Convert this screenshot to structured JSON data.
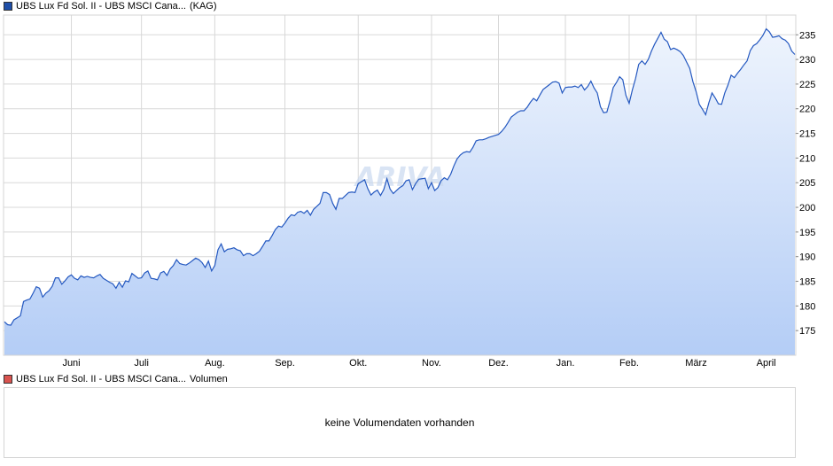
{
  "legend_top": {
    "series_name": "UBS Lux Fd Sol. II - UBS MSCI Cana...",
    "suffix": "(KAG)",
    "color": "#1f4fa8"
  },
  "legend_bottom": {
    "series_name": "UBS Lux Fd Sol. II - UBS MSCI Cana...",
    "suffix": "Volumen",
    "color": "#d9534f"
  },
  "volume": {
    "message": "keine Volumendaten vorhanden"
  },
  "colors": {
    "line": "#2458c0",
    "area_top": "#eef4fd",
    "area_bottom": "#b4cdf6",
    "grid": "#d8d8d8",
    "watermark": "#c9d9f0"
  },
  "chart_data": {
    "type": "area",
    "title": "",
    "xlabel": "",
    "ylabel": "",
    "ylim": [
      170,
      239
    ],
    "yticks": [
      175,
      180,
      185,
      190,
      195,
      200,
      205,
      210,
      215,
      220,
      225,
      230,
      235
    ],
    "x_tick_labels": [
      "Juni",
      "Juli",
      "Aug.",
      "Sep.",
      "Okt.",
      "Nov.",
      "Dez.",
      "Jan.",
      "Feb.",
      "März",
      "April"
    ],
    "x_tick_index": [
      21,
      43,
      66,
      88,
      111,
      134,
      155,
      176,
      196,
      217,
      239
    ],
    "grid": true,
    "legend_position": "top-left",
    "series": [
      {
        "name": "UBS Lux Fd Sol. II - UBS MSCI Cana...",
        "values": [
          176.8,
          176.2,
          176.1,
          177.2,
          177.6,
          178.0,
          180.9,
          181.2,
          181.4,
          182.6,
          183.9,
          183.6,
          181.8,
          182.6,
          183.1,
          184.0,
          185.7,
          185.7,
          184.4,
          185.1,
          185.9,
          186.3,
          185.6,
          185.3,
          186.1,
          185.8,
          186.0,
          185.8,
          185.7,
          186.1,
          186.4,
          185.6,
          185.2,
          184.8,
          184.5,
          183.6,
          184.8,
          183.8,
          185.1,
          184.9,
          186.6,
          186.1,
          185.6,
          185.7,
          186.7,
          187.1,
          185.6,
          185.5,
          185.3,
          186.7,
          187.0,
          186.2,
          187.5,
          188.2,
          189.4,
          188.6,
          188.4,
          188.3,
          188.7,
          189.2,
          189.7,
          189.4,
          188.8,
          187.8,
          189.1,
          187.1,
          188.2,
          191.4,
          192.6,
          191.0,
          191.5,
          191.6,
          191.8,
          191.4,
          191.2,
          190.2,
          190.6,
          190.6,
          190.2,
          190.6,
          191.1,
          192.1,
          193.2,
          193.2,
          194.3,
          195.5,
          196.2,
          196.0,
          196.8,
          197.8,
          198.5,
          198.3,
          199.0,
          199.2,
          198.8,
          199.4,
          198.4,
          199.6,
          200.2,
          200.8,
          203.0,
          203.0,
          202.6,
          200.8,
          199.6,
          201.8,
          201.8,
          202.4,
          203.0,
          203.1,
          203.0,
          204.8,
          205.2,
          205.6,
          203.8,
          202.5,
          203.1,
          203.5,
          202.4,
          203.6,
          205.8,
          203.7,
          202.8,
          203.4,
          204.0,
          204.4,
          205.4,
          205.6,
          203.6,
          204.8,
          205.7,
          205.8,
          205.9,
          203.8,
          205.0,
          203.4,
          204.0,
          205.4,
          206.0,
          205.6,
          206.7,
          208.4,
          209.8,
          210.6,
          211.1,
          211.3,
          211.2,
          212.2,
          213.5,
          213.7,
          213.7,
          213.9,
          214.2,
          214.4,
          214.6,
          214.8,
          215.4,
          216.2,
          217.2,
          218.3,
          218.8,
          219.3,
          219.6,
          219.6,
          220.3,
          221.3,
          222.1,
          221.6,
          222.8,
          223.9,
          224.4,
          224.9,
          225.4,
          225.5,
          225.2,
          223.2,
          224.3,
          224.4,
          224.4,
          224.6,
          224.3,
          224.9,
          223.8,
          224.5,
          225.6,
          224.2,
          223.2,
          220.4,
          219.2,
          219.3,
          221.6,
          224.3,
          225.3,
          226.5,
          225.9,
          222.7,
          221.1,
          223.8,
          226.1,
          229.0,
          229.7,
          229.0,
          230.0,
          231.7,
          233.1,
          234.3,
          235.5,
          234.1,
          233.6,
          232.0,
          232.3,
          232.0,
          231.6,
          230.8,
          229.5,
          228.2,
          225.5,
          223.5,
          220.9,
          219.9,
          218.8,
          221.2,
          223.2,
          222.2,
          221.0,
          220.9,
          223.2,
          224.8,
          226.8,
          226.3,
          227.2,
          228.0,
          228.9,
          229.7,
          231.8,
          232.8,
          233.2,
          234.0,
          234.9,
          236.2,
          235.6,
          234.5,
          234.6,
          234.8,
          234.2,
          233.9,
          233.2,
          231.7,
          231.0
        ]
      }
    ]
  }
}
